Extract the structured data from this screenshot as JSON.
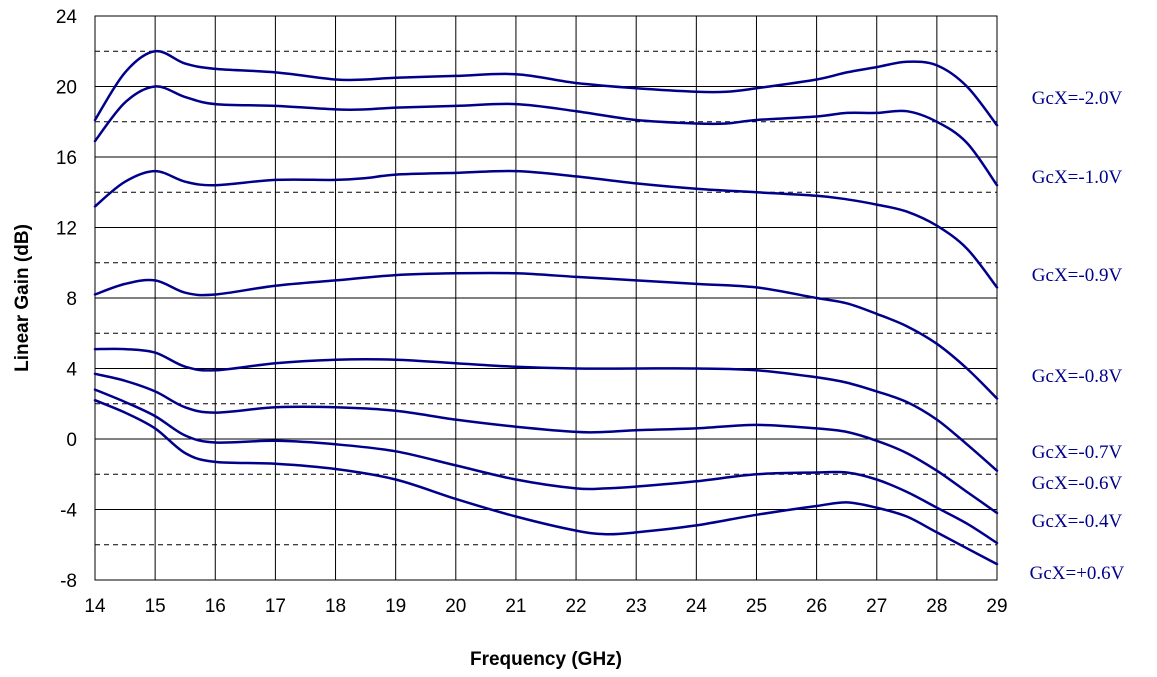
{
  "chart_data": {
    "type": "line",
    "title": "",
    "xlabel": "Frequency (GHz)",
    "ylabel": "Linear Gain (dB)",
    "xlim": [
      14,
      29
    ],
    "ylim": [
      -8,
      24
    ],
    "x_ticks": [
      14,
      15,
      16,
      17,
      18,
      19,
      20,
      21,
      22,
      23,
      24,
      25,
      26,
      27,
      28,
      29
    ],
    "y_ticks": [
      -8,
      -4,
      0,
      4,
      8,
      12,
      16,
      20,
      24
    ],
    "grid": {
      "vertical": "every 1 GHz (solid)",
      "horizontal_major": [
        -8,
        -4,
        0,
        4,
        8,
        12,
        16,
        20,
        24
      ],
      "horizontal_dashed": [
        -6,
        -2,
        2,
        6,
        10,
        14,
        18,
        22
      ]
    },
    "line_color": "#00008b",
    "series": [
      {
        "name": "",
        "x": [
          14,
          14.5,
          15,
          15.5,
          16,
          17,
          18,
          18.5,
          19,
          20,
          21,
          22,
          23,
          24,
          24.5,
          25,
          26,
          26.5,
          27,
          27.5,
          28,
          28.5,
          29
        ],
        "values": [
          18.1,
          20.8,
          22.0,
          21.3,
          21.0,
          20.8,
          20.4,
          20.4,
          20.5,
          20.6,
          20.7,
          20.2,
          19.9,
          19.7,
          19.7,
          19.9,
          20.4,
          20.8,
          21.1,
          21.4,
          21.2,
          20.0,
          17.8
        ]
      },
      {
        "name": "GcX=-2.0V",
        "x": [
          14,
          14.5,
          15,
          15.5,
          16,
          17,
          18,
          18.5,
          19,
          20,
          21,
          22,
          23,
          24,
          24.5,
          25,
          26,
          26.5,
          27,
          27.5,
          28,
          28.5,
          29
        ],
        "values": [
          16.9,
          19.1,
          20.0,
          19.4,
          19.0,
          18.9,
          18.7,
          18.7,
          18.8,
          18.9,
          19.0,
          18.6,
          18.1,
          17.9,
          17.9,
          18.1,
          18.3,
          18.5,
          18.5,
          18.6,
          18.0,
          16.8,
          14.4
        ]
      },
      {
        "name": "GcX=-1.0V",
        "x": [
          14,
          14.5,
          15,
          15.5,
          16,
          17,
          18,
          18.5,
          19,
          20,
          21,
          22,
          23,
          24,
          25,
          26,
          26.5,
          27,
          27.5,
          28,
          28.5,
          29
        ],
        "values": [
          13.2,
          14.6,
          15.2,
          14.6,
          14.4,
          14.7,
          14.7,
          14.8,
          15.0,
          15.1,
          15.2,
          14.9,
          14.5,
          14.2,
          14.0,
          13.8,
          13.6,
          13.3,
          12.9,
          12.1,
          10.8,
          8.6
        ]
      },
      {
        "name": "GcX=-0.9V",
        "x": [
          14,
          14.5,
          15,
          15.5,
          16,
          17,
          18,
          19,
          20,
          21,
          22,
          23,
          24,
          25,
          26,
          26.5,
          27,
          27.5,
          28,
          28.5,
          29
        ],
        "values": [
          8.2,
          8.8,
          9.0,
          8.3,
          8.2,
          8.7,
          9.0,
          9.3,
          9.4,
          9.4,
          9.2,
          9.0,
          8.8,
          8.6,
          8.0,
          7.7,
          7.1,
          6.4,
          5.4,
          4.0,
          2.3
        ]
      },
      {
        "name": "GcX=-0.8V",
        "x": [
          14,
          14.5,
          15,
          15.5,
          16,
          17,
          18,
          19,
          20,
          21,
          22,
          23,
          24,
          25,
          26,
          26.5,
          27,
          27.5,
          28,
          28.5,
          29
        ],
        "values": [
          5.1,
          5.1,
          4.9,
          4.1,
          3.9,
          4.3,
          4.5,
          4.5,
          4.3,
          4.1,
          4.0,
          4.0,
          4.0,
          3.9,
          3.5,
          3.2,
          2.7,
          2.1,
          1.1,
          -0.3,
          -1.8
        ]
      },
      {
        "name": "GcX=-0.7V",
        "x": [
          14,
          14.5,
          15,
          15.5,
          16,
          17,
          18,
          19,
          20,
          21,
          22,
          22.5,
          23,
          24,
          25,
          26,
          26.5,
          27,
          27.5,
          28,
          28.5,
          29
        ],
        "values": [
          3.7,
          3.3,
          2.7,
          1.8,
          1.5,
          1.8,
          1.8,
          1.6,
          1.1,
          0.7,
          0.4,
          0.4,
          0.5,
          0.6,
          0.8,
          0.6,
          0.4,
          -0.1,
          -0.8,
          -1.8,
          -3.0,
          -4.2
        ]
      },
      {
        "name": "GcX=-0.6V",
        "x": [
          14,
          14.5,
          15,
          15.5,
          16,
          17,
          18,
          19,
          20,
          21,
          22,
          22.5,
          23,
          24,
          25,
          26,
          26.5,
          27,
          27.5,
          28,
          28.5,
          29
        ],
        "values": [
          2.8,
          2.1,
          1.3,
          0.2,
          -0.2,
          -0.1,
          -0.3,
          -0.7,
          -1.5,
          -2.3,
          -2.8,
          -2.8,
          -2.7,
          -2.4,
          -2.0,
          -1.9,
          -1.9,
          -2.3,
          -3.0,
          -3.9,
          -4.8,
          -5.9
        ]
      },
      {
        "name": "GcX=-0.4V",
        "x": [
          14,
          14.5,
          15,
          15.5,
          16,
          17,
          18,
          19,
          20,
          21,
          22,
          22.5,
          23,
          24,
          25,
          26,
          26.5,
          27,
          27.5,
          28,
          28.5,
          29
        ],
        "values": [
          2.2,
          1.5,
          0.6,
          -0.8,
          -1.3,
          -1.4,
          -1.7,
          -2.3,
          -3.4,
          -4.4,
          -5.2,
          -5.4,
          -5.3,
          -4.9,
          -4.3,
          -3.8,
          -3.6,
          -3.9,
          -4.4,
          -5.3,
          -6.2,
          -7.1
        ]
      }
    ],
    "series_label_values": [
      "GcX=-2.0V",
      "GcX=-1.0V",
      "GcX=-0.9V",
      "GcX=-0.8V",
      "GcX=-0.7V",
      "GcX=-0.6V",
      "GcX=-0.4V",
      "GcX=+0.6V"
    ]
  }
}
